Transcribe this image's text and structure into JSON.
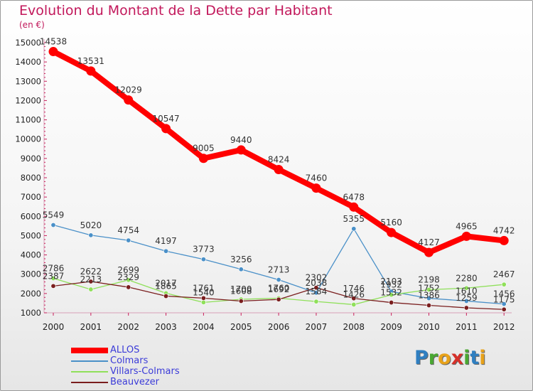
{
  "chart_data": {
    "type": "line",
    "title": "Evolution du Montant de la Dette par Habitant",
    "subtitle": "(en €)",
    "x": [
      "2000",
      "2001",
      "2002",
      "2003",
      "2004",
      "2005",
      "2006",
      "2007",
      "2008",
      "2009",
      "2010",
      "2011",
      "2012"
    ],
    "ylim": [
      1000,
      15000
    ],
    "yticks": [
      1000,
      2000,
      3000,
      4000,
      5000,
      6000,
      7000,
      8000,
      9000,
      10000,
      11000,
      12000,
      13000,
      14000,
      15000
    ],
    "grid": false,
    "legend_position": "bottom-left",
    "series": [
      {
        "name": "ALLOS",
        "color": "#ff0000",
        "values": [
          14538,
          13531,
          12029,
          10547,
          9005,
          9440,
          8424,
          7460,
          6478,
          5160,
          4127,
          4965,
          4742
        ],
        "labels": [
          "14538",
          "13531",
          "12029",
          "10547",
          "9005",
          "9440",
          "8424",
          "7460",
          "6478",
          "5160",
          "4127",
          "4965",
          "4742"
        ]
      },
      {
        "name": "Colmars",
        "color": "#4a90c8",
        "values": [
          5549,
          5020,
          4754,
          4197,
          3773,
          3256,
          2713,
          2038,
          5355,
          2103,
          1752,
          1610,
          1456
        ],
        "labels": [
          "5549",
          "5020",
          "4754",
          "4197",
          "3773",
          "3256",
          "2713",
          "2038",
          "5355",
          "2103",
          "1752",
          "1610",
          "1456"
        ]
      },
      {
        "name": "Villars-Colmars",
        "color": "#8fe05a",
        "values": [
          2786,
          2213,
          2699,
          2017,
          1540,
          1700,
          1760,
          1584,
          1426,
          1932,
          2198,
          2280,
          2467
        ],
        "labels": [
          "2786",
          "2213",
          "2699",
          "2017",
          "1540",
          "1700",
          "1760",
          "1584",
          "1426",
          "1932",
          "2198",
          "2280",
          "2467"
        ]
      },
      {
        "name": "Beauvezer",
        "color": "#7a1e1e",
        "values": [
          2387,
          2622,
          2329,
          1865,
          1761,
          1608,
          1692,
          2302,
          1746,
          1532,
          1386,
          1259,
          1175
        ],
        "labels": [
          "2387",
          "2622",
          "2329",
          "1865",
          "1761",
          "1608",
          "1692",
          "2302",
          "1746",
          "1532",
          "1386",
          "1259",
          "1175"
        ]
      }
    ]
  },
  "logo": {
    "letters": [
      {
        "ch": "P",
        "color": "#2f7fc1"
      },
      {
        "ch": "r",
        "color": "#4aa832"
      },
      {
        "ch": "o",
        "color": "#e8a21a"
      },
      {
        "ch": "x",
        "color": "#d6312a"
      },
      {
        "ch": "i",
        "color": "#4aa832"
      },
      {
        "ch": "t",
        "color": "#2f7fc1"
      },
      {
        "ch": "i",
        "color": "#e8a21a"
      }
    ]
  }
}
